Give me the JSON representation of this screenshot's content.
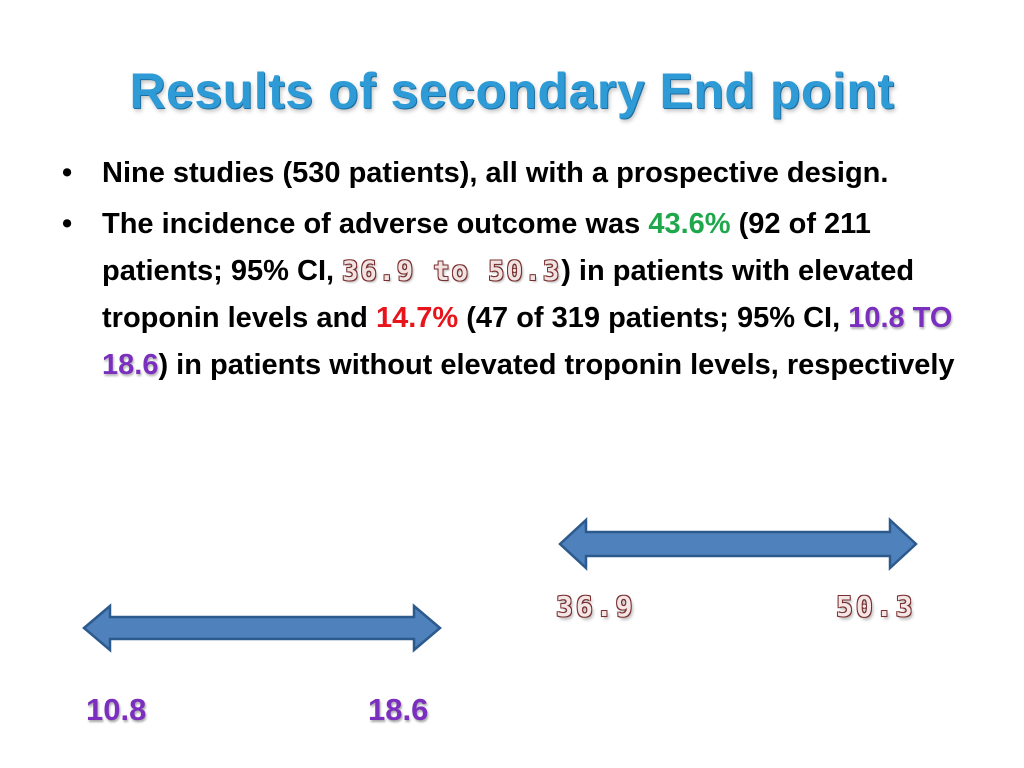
{
  "slide": {
    "title": "Results of secondary End point",
    "bullet_symbol": "•",
    "bullet1": "Nine studies (530 patients), all with a prospective design.",
    "bullet2": {
      "p1": " The incidence of adverse outcome was ",
      "pct1": "43.6%",
      "p2": " (92 of 211 patients; 95% CI, ",
      "ci1": "36.9 to 50.3",
      "p3": ") in patients with elevated troponin levels and ",
      "pct2": "14.7%",
      "p4": " (47 of 319 patients; 95% CI, ",
      "ci2": "10.8 TO 18.6",
      "p5": ") in patients without elevated troponin levels, respectively"
    }
  },
  "ranges": {
    "range1": {
      "low": "36.9",
      "high": "50.3"
    },
    "range2": {
      "low": "10.8",
      "high": "18.6"
    }
  },
  "colors": {
    "title": "#2e9bd6",
    "pct_elevated": "#1fa84b",
    "pct_not_elevated": "#e8141b",
    "ci_elevated": "#7a2f2f",
    "ci_not_elevated": "#7b2fbe",
    "arrow_fill": "#4f81bd",
    "arrow_stroke": "#2c5a8c"
  }
}
